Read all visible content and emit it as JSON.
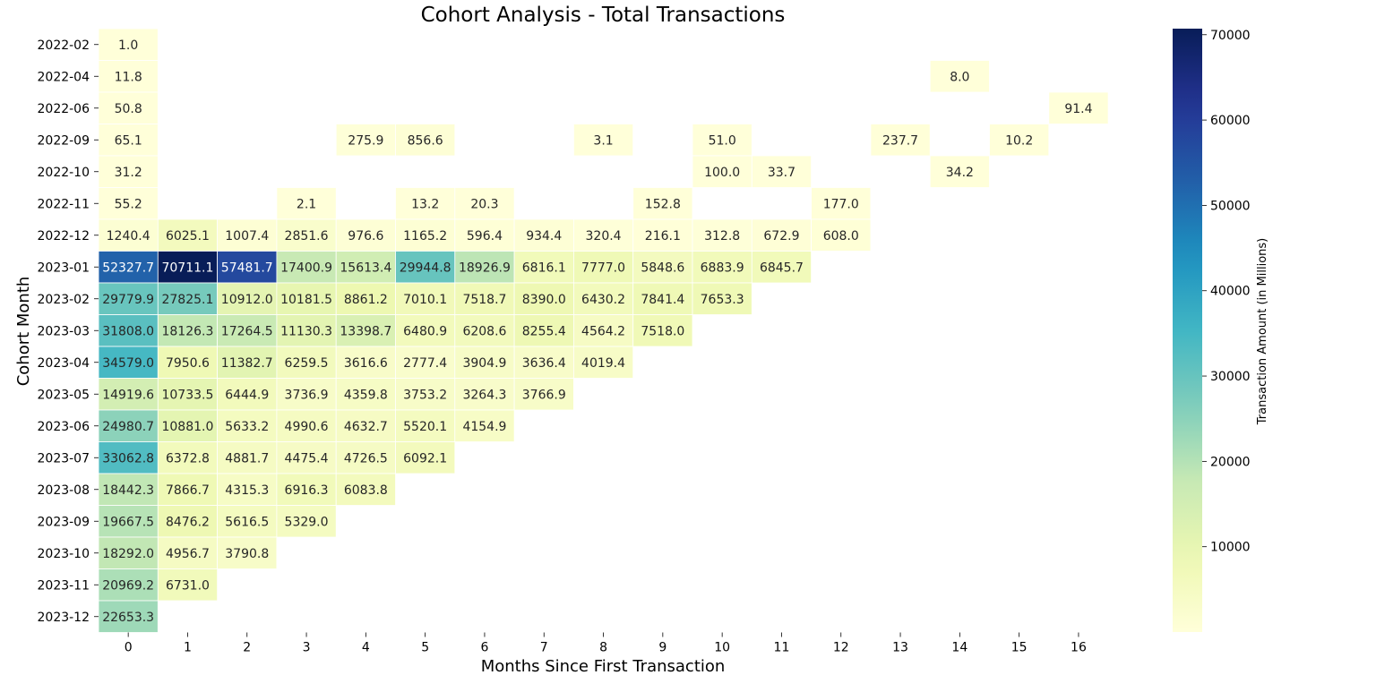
{
  "chart_data": {
    "type": "heatmap",
    "title": "Cohort Analysis - Total Transactions",
    "xlabel": "Months Since First Transaction",
    "ylabel": "Cohort Month",
    "colorbar_label": "Transaction Amount (in Millions)",
    "colorbar_ticks": [
      10000,
      20000,
      30000,
      40000,
      50000,
      60000,
      70000
    ],
    "color_range": [
      1.0,
      70711.1
    ],
    "colormap": "YlGnBu",
    "x": [
      "0",
      "1",
      "2",
      "3",
      "4",
      "5",
      "6",
      "7",
      "8",
      "9",
      "10",
      "11",
      "12",
      "13",
      "14",
      "15",
      "16"
    ],
    "y": [
      "2022-02",
      "2022-04",
      "2022-06",
      "2022-09",
      "2022-10",
      "2022-11",
      "2022-12",
      "2023-01",
      "2023-02",
      "2023-03",
      "2023-04",
      "2023-05",
      "2023-06",
      "2023-07",
      "2023-08",
      "2023-09",
      "2023-10",
      "2023-11",
      "2023-12"
    ],
    "values": [
      [
        1.0,
        null,
        null,
        null,
        null,
        null,
        null,
        null,
        null,
        null,
        null,
        null,
        null,
        null,
        null,
        null,
        null
      ],
      [
        11.8,
        null,
        null,
        null,
        null,
        null,
        null,
        null,
        null,
        null,
        null,
        null,
        null,
        null,
        8.0,
        null,
        null
      ],
      [
        50.8,
        null,
        null,
        null,
        null,
        null,
        null,
        null,
        null,
        null,
        null,
        null,
        null,
        null,
        null,
        null,
        91.4
      ],
      [
        65.1,
        null,
        null,
        null,
        275.9,
        856.6,
        null,
        null,
        3.1,
        null,
        51.0,
        null,
        null,
        237.7,
        null,
        10.2,
        null
      ],
      [
        31.2,
        null,
        null,
        null,
        null,
        null,
        null,
        null,
        null,
        null,
        100.0,
        33.7,
        null,
        null,
        34.2,
        null,
        null
      ],
      [
        55.2,
        null,
        null,
        2.1,
        null,
        13.2,
        20.3,
        null,
        null,
        152.8,
        null,
        null,
        177.0,
        null,
        null,
        null,
        null
      ],
      [
        1240.4,
        6025.1,
        1007.4,
        2851.6,
        976.6,
        1165.2,
        596.4,
        934.4,
        320.4,
        216.1,
        312.8,
        672.9,
        608.0,
        null,
        null,
        null,
        null
      ],
      [
        52327.7,
        70711.1,
        57481.7,
        17400.9,
        15613.4,
        29944.8,
        18926.9,
        6816.1,
        7777.0,
        5848.6,
        6883.9,
        6845.7,
        null,
        null,
        null,
        null,
        null
      ],
      [
        29779.9,
        27825.1,
        10912.0,
        10181.5,
        8861.2,
        7010.1,
        7518.7,
        8390.0,
        6430.2,
        7841.4,
        7653.3,
        null,
        null,
        null,
        null,
        null,
        null
      ],
      [
        31808.0,
        18126.3,
        17264.5,
        11130.3,
        13398.7,
        6480.9,
        6208.6,
        8255.4,
        4564.2,
        7518.0,
        null,
        null,
        null,
        null,
        null,
        null,
        null
      ],
      [
        34579.0,
        7950.6,
        11382.7,
        6259.5,
        3616.6,
        2777.4,
        3904.9,
        3636.4,
        4019.4,
        null,
        null,
        null,
        null,
        null,
        null,
        null,
        null
      ],
      [
        14919.6,
        10733.5,
        6444.9,
        3736.9,
        4359.8,
        3753.2,
        3264.3,
        3766.9,
        null,
        null,
        null,
        null,
        null,
        null,
        null,
        null,
        null
      ],
      [
        24980.7,
        10881.0,
        5633.2,
        4990.6,
        4632.7,
        5520.1,
        4154.9,
        null,
        null,
        null,
        null,
        null,
        null,
        null,
        null,
        null,
        null
      ],
      [
        33062.8,
        6372.8,
        4881.7,
        4475.4,
        4726.5,
        6092.1,
        null,
        null,
        null,
        null,
        null,
        null,
        null,
        null,
        null,
        null,
        null
      ],
      [
        18442.3,
        7866.7,
        4315.3,
        6916.3,
        6083.8,
        null,
        null,
        null,
        null,
        null,
        null,
        null,
        null,
        null,
        null,
        null,
        null
      ],
      [
        19667.5,
        8476.2,
        5616.5,
        5329.0,
        null,
        null,
        null,
        null,
        null,
        null,
        null,
        null,
        null,
        null,
        null,
        null,
        null
      ],
      [
        18292.0,
        4956.7,
        3790.8,
        null,
        null,
        null,
        null,
        null,
        null,
        null,
        null,
        null,
        null,
        null,
        null,
        null,
        null
      ],
      [
        20969.2,
        6731.0,
        null,
        null,
        null,
        null,
        null,
        null,
        null,
        null,
        null,
        null,
        null,
        null,
        null,
        null,
        null
      ],
      [
        22653.3,
        null,
        null,
        null,
        null,
        null,
        null,
        null,
        null,
        null,
        null,
        null,
        null,
        null,
        null,
        null,
        null
      ]
    ]
  }
}
